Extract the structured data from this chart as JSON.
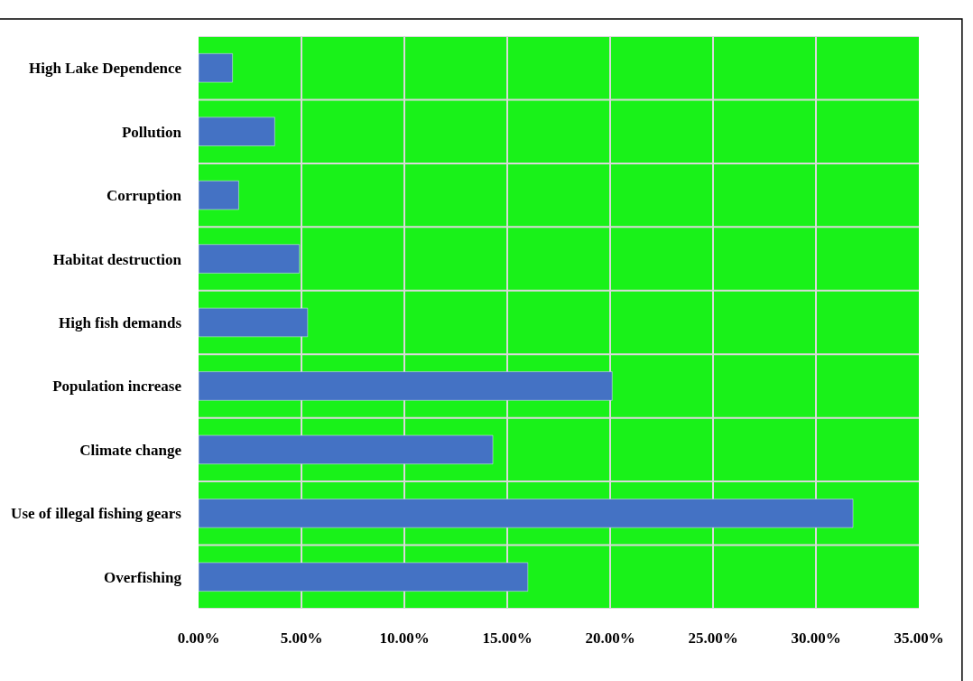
{
  "chart_data": {
    "type": "bar",
    "orientation": "horizontal",
    "categories": [
      "High Lake Dependence",
      "Pollution",
      "Corruption",
      "Habitat destruction",
      "High fish demands",
      "Population increase",
      "Climate change",
      "Use of illegal fishing gears",
      "Overfishing"
    ],
    "values": [
      1.65,
      3.7,
      1.95,
      4.9,
      5.3,
      20.1,
      14.3,
      31.8,
      16.0
    ],
    "color": "#4472c4",
    "xlim": [
      0,
      35
    ],
    "xticks": [
      {
        "value": 0,
        "label": "0.00%"
      },
      {
        "value": 5,
        "label": "5.00%"
      },
      {
        "value": 10,
        "label": "10.00%"
      },
      {
        "value": 15,
        "label": "15.00%"
      },
      {
        "value": 20,
        "label": "20.00%"
      },
      {
        "value": 25,
        "label": "25.00%"
      },
      {
        "value": 30,
        "label": "30.00%"
      },
      {
        "value": 35,
        "label": "35.00%"
      }
    ],
    "grid": true
  }
}
